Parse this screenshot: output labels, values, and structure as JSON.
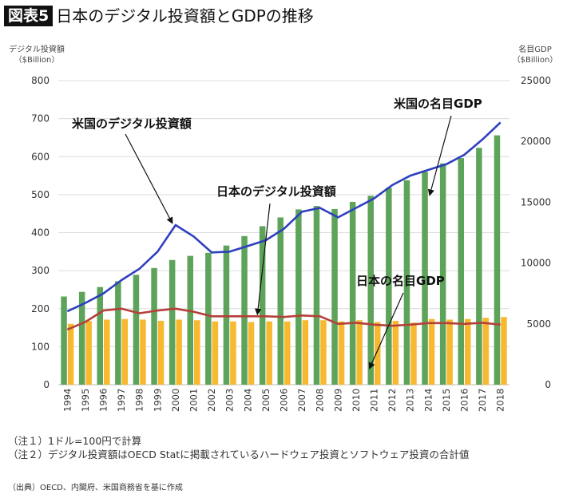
{
  "header": {
    "badge": "図表5",
    "title": "日本のデジタル投資額とGDPの推移"
  },
  "axes": {
    "left_title_line1": "デジタル投資額",
    "left_title_line2": "（$Billion）",
    "right_title_line1": "名目GDP",
    "right_title_line2": "（$Billion）"
  },
  "chart_data": {
    "type": "bar+line",
    "title": "日本のデジタル投資額とGDPの推移",
    "x": [
      "1994",
      "1995",
      "1996",
      "1997",
      "1998",
      "1999",
      "2000",
      "2001",
      "2002",
      "2003",
      "2004",
      "2005",
      "2006",
      "2007",
      "2008",
      "2009",
      "2010",
      "2011",
      "2012",
      "2013",
      "2014",
      "2015",
      "2016",
      "2017",
      "2018"
    ],
    "y_left": {
      "label": "デジタル投資額（$Billion）",
      "range": [
        0,
        800
      ],
      "ticks": [
        0,
        100,
        200,
        300,
        400,
        500,
        600,
        700,
        800
      ]
    },
    "y_right": {
      "label": "名目GDP（$Billion）",
      "range": [
        0,
        25000
      ],
      "ticks": [
        0,
        5000,
        10000,
        15000,
        20000,
        25000
      ]
    },
    "grid": true,
    "bar_series": [
      {
        "name": "米国の名目GDP",
        "axis": "right",
        "color": "#5ea35a",
        "values": [
          7250,
          7630,
          8030,
          8500,
          9030,
          9590,
          10250,
          10590,
          10840,
          11440,
          12220,
          13030,
          13750,
          14410,
          14690,
          14440,
          15030,
          15530,
          16190,
          16810,
          17500,
          18190,
          18630,
          19470,
          20500
        ]
      },
      {
        "name": "日本の名目GDP",
        "axis": "right",
        "color": "#f6b92f",
        "values": [
          5000,
          5230,
          5350,
          5400,
          5350,
          5250,
          5350,
          5300,
          5200,
          5200,
          5150,
          5200,
          5200,
          5300,
          5300,
          5200,
          5300,
          5150,
          5250,
          5100,
          5400,
          5350,
          5400,
          5500,
          5560
        ]
      }
    ],
    "line_series": [
      {
        "name": "米国のデジタル投資額",
        "axis": "left",
        "color": "#2e3fbf",
        "values": [
          193,
          215,
          240,
          275,
          305,
          350,
          420,
          390,
          348,
          350,
          365,
          380,
          410,
          455,
          465,
          440,
          465,
          490,
          525,
          550,
          565,
          580,
          605,
          645,
          690
        ]
      },
      {
        "name": "日本のデジタル投資額",
        "axis": "left",
        "color": "#b5403a",
        "values": [
          145,
          165,
          195,
          200,
          188,
          195,
          200,
          192,
          180,
          180,
          180,
          180,
          178,
          182,
          180,
          160,
          163,
          158,
          155,
          158,
          162,
          162,
          160,
          163,
          158
        ]
      }
    ],
    "annotations": [
      {
        "text": "米国のデジタル投資額",
        "points_to": "2000 米国のデジタル投資額"
      },
      {
        "text": "日本のデジタル投資額",
        "points_to": "2004 日本のデジタル投資額"
      },
      {
        "text": "米国の名目GDP",
        "points_to": "2015 米国の名目GDP"
      },
      {
        "text": "日本の名目GDP",
        "points_to": "2011 日本の名目GDP"
      }
    ]
  },
  "notes": [
    "（注１）1ドル=100円で計算",
    "（注２）デジタル投資額はOECD Statに掲載されているハードウェア投資とソフトウェア投資の合計値"
  ],
  "source": "（出典）OECD、内閣府、米国商務省を基に作成"
}
